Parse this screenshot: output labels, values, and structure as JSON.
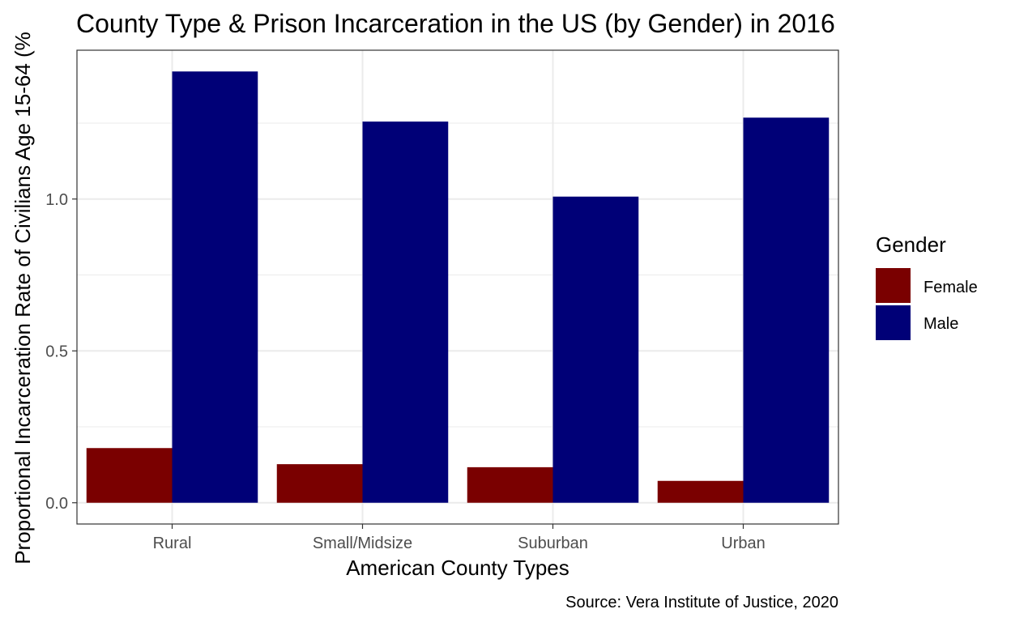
{
  "chart_data": {
    "type": "bar",
    "title": "County Type & Prison Incarceration in the US (by Gender) in 2016",
    "xlabel": "American County Types",
    "ylabel": "Proportional Incarceration Rate of Civilians Age 15-64 (%",
    "caption": "Source: Vera Institute of Justice, 2020",
    "categories": [
      "Rural",
      "Small/Midsize",
      "Suburban",
      "Urban"
    ],
    "series": [
      {
        "name": "Female",
        "color": "#7a0000",
        "values": [
          0.18,
          0.127,
          0.117,
          0.072
        ]
      },
      {
        "name": "Male",
        "color": "#000077",
        "values": [
          1.42,
          1.255,
          1.008,
          1.268
        ]
      }
    ],
    "ylim": [
      -0.07,
      1.49
    ],
    "yticks": [
      0.0,
      0.5,
      1.0
    ],
    "ytick_labels": [
      "0.0",
      "0.5",
      "1.0"
    ],
    "grid": true,
    "legend": {
      "title": "Gender",
      "position": "right"
    }
  }
}
